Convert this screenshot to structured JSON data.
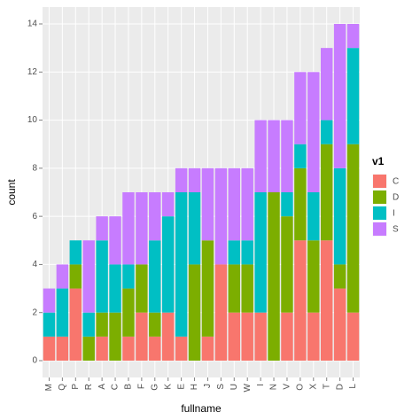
{
  "chart_data": {
    "type": "bar",
    "stacked": true,
    "x_label": "fullname",
    "y_label": "count",
    "legend_title": "v1",
    "legend": "right",
    "categories": [
      "M",
      "Q",
      "P",
      "R",
      "A",
      "C",
      "B",
      "F",
      "G",
      "K",
      "E",
      "H",
      "J",
      "S",
      "U",
      "W",
      "I",
      "N",
      "V",
      "O",
      "X",
      "T",
      "D",
      "L"
    ],
    "series": [
      {
        "name": "C",
        "color": "#F8766D",
        "values": [
          1,
          1,
          3,
          0,
          1,
          0,
          1,
          2,
          1,
          2,
          1,
          0,
          1,
          4,
          2,
          2,
          2,
          0,
          2,
          5,
          2,
          5,
          3,
          2
        ]
      },
      {
        "name": "D",
        "color": "#7CAE00",
        "values": [
          0,
          0,
          1,
          1,
          1,
          2,
          2,
          2,
          1,
          0,
          0,
          4,
          4,
          0,
          2,
          2,
          0,
          7,
          4,
          3,
          3,
          4,
          1,
          7
        ]
      },
      {
        "name": "I",
        "color": "#00BFC4",
        "values": [
          1,
          2,
          1,
          1,
          3,
          2,
          1,
          0,
          3,
          4,
          6,
          3,
          0,
          0,
          1,
          1,
          5,
          0,
          1,
          1,
          2,
          1,
          4,
          4
        ]
      },
      {
        "name": "S",
        "color": "#C77CFF",
        "values": [
          1,
          1,
          0,
          3,
          1,
          2,
          3,
          3,
          2,
          1,
          1,
          1,
          3,
          4,
          3,
          3,
          3,
          3,
          3,
          3,
          5,
          3,
          6,
          1
        ]
      }
    ],
    "ylim": [
      -0.7,
      14.7
    ],
    "yticks": [
      0,
      2,
      4,
      6,
      8,
      10,
      12,
      14
    ],
    "grid": true
  }
}
